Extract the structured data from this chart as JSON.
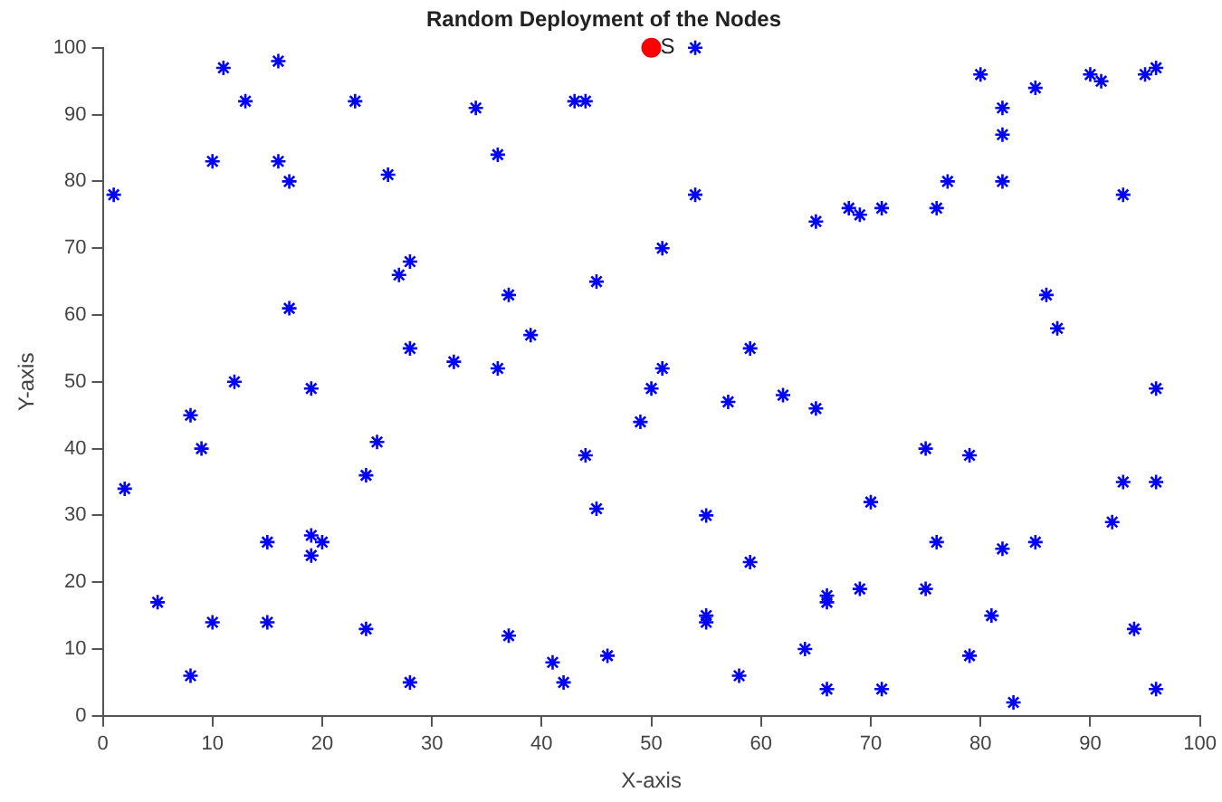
{
  "chart_data": {
    "type": "scatter",
    "title": "Random Deployment of the Nodes",
    "xlabel": "X-axis",
    "ylabel": "Y-axis",
    "xlim": [
      0,
      100
    ],
    "xticks": [
      0,
      10,
      20,
      30,
      40,
      50,
      60,
      70,
      80,
      90,
      100
    ],
    "ylim": [
      0,
      100
    ],
    "yticks": [
      0,
      10,
      20,
      30,
      40,
      50,
      60,
      70,
      80,
      90,
      100
    ],
    "grid": false,
    "legend": false,
    "series": [
      {
        "color": "#0000ff",
        "marker": "cross",
        "x": [
          1,
          10,
          11,
          13,
          16,
          16,
          17,
          23,
          26,
          17,
          27,
          28,
          28,
          32,
          34,
          36,
          37,
          36,
          39,
          43,
          44,
          45,
          51,
          50,
          51,
          49,
          54,
          54,
          59,
          57,
          62,
          65,
          65,
          68,
          69,
          71,
          76,
          77,
          80,
          82,
          82,
          82,
          85,
          90,
          91,
          95,
          96,
          93,
          86,
          87,
          96,
          2,
          5,
          8,
          9,
          12,
          19,
          8,
          10,
          15,
          15,
          19,
          19,
          20,
          24,
          25,
          24,
          28,
          37,
          41,
          42,
          44,
          45,
          46,
          55,
          55,
          55,
          58,
          59,
          64,
          66,
          66,
          66,
          69,
          70,
          71,
          75,
          75,
          76,
          79,
          79,
          81,
          82,
          83,
          85,
          92,
          93,
          94,
          96,
          96
        ],
        "values": [
          78,
          83,
          97,
          92,
          98,
          83,
          80,
          92,
          81,
          61,
          66,
          68,
          55,
          53,
          91,
          84,
          63,
          52,
          57,
          92,
          92,
          65,
          70,
          49,
          52,
          44,
          100,
          78,
          55,
          47,
          48,
          46,
          74,
          76,
          75,
          76,
          76,
          80,
          96,
          91,
          87,
          80,
          94,
          96,
          95,
          96,
          97,
          78,
          63,
          58,
          49,
          34,
          17,
          45,
          40,
          50,
          49,
          6,
          14,
          26,
          14,
          27,
          24,
          26,
          36,
          41,
          13,
          5,
          12,
          8,
          5,
          39,
          31,
          9,
          30,
          15,
          14,
          6,
          23,
          10,
          18,
          17,
          4,
          19,
          32,
          4,
          40,
          19,
          26,
          39,
          9,
          15,
          25,
          2,
          26,
          29,
          35,
          13,
          35,
          4
        ]
      },
      {
        "color": "#ff0000",
        "marker": "circle",
        "x": [
          50
        ],
        "values": [
          100
        ]
      }
    ],
    "annotations": [
      {
        "text": "S",
        "x": 50,
        "y": 100
      }
    ]
  }
}
